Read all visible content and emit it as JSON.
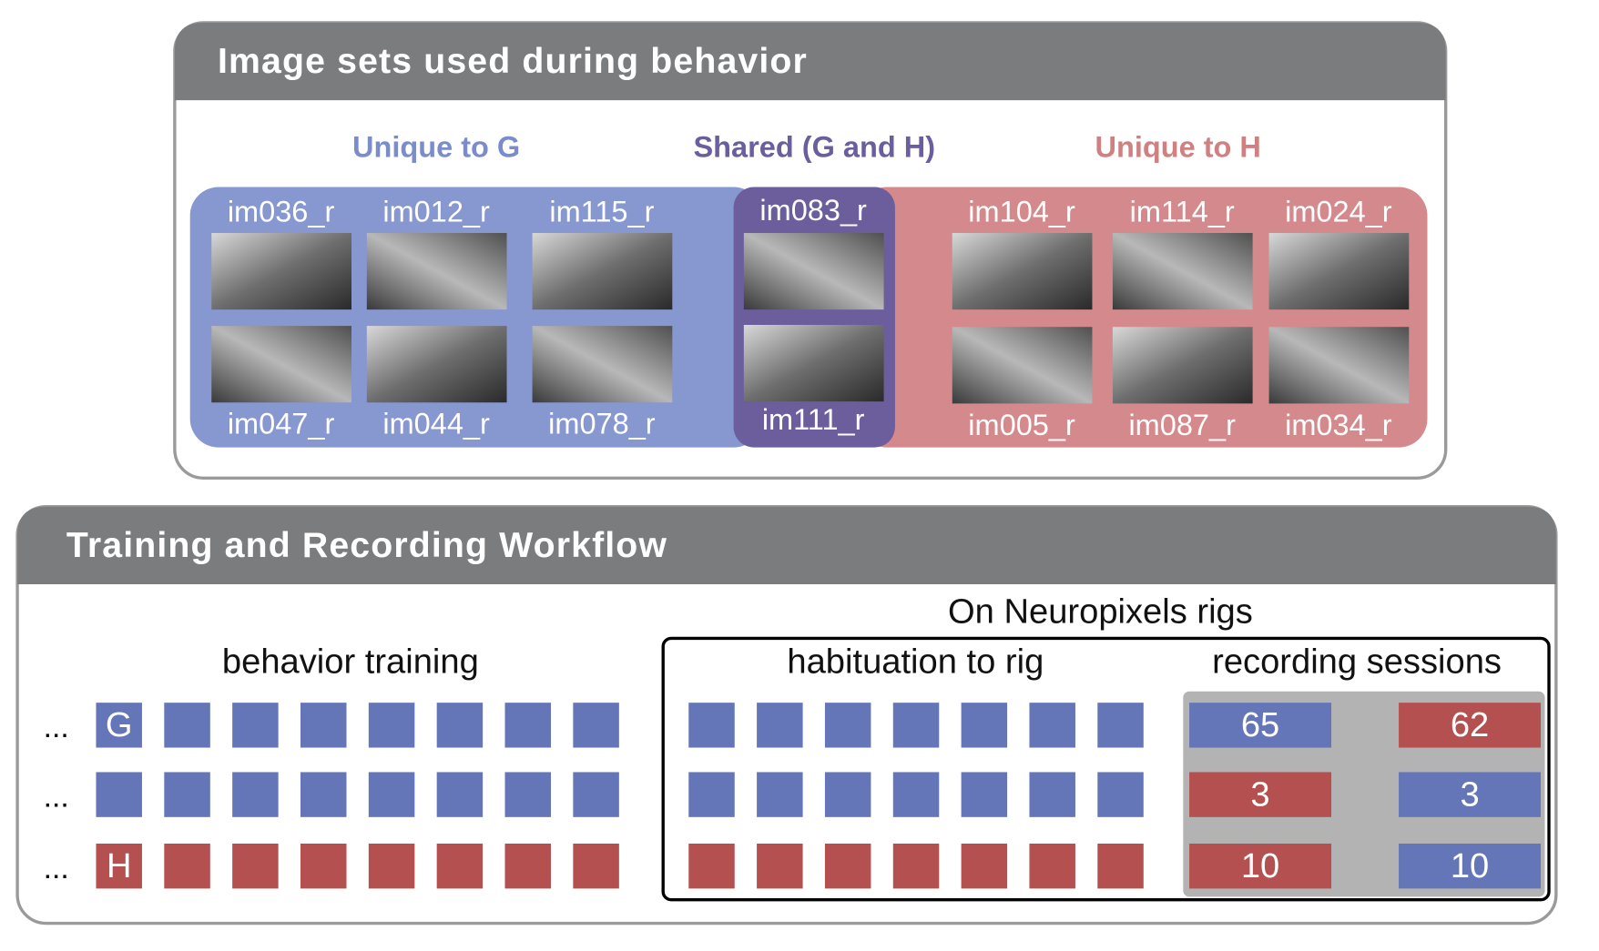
{
  "image_panel": {
    "title": "Image sets used during behavior",
    "groups": [
      {
        "label": "Unique to G",
        "images": [
          "im036_r",
          "im012_r",
          "im115_r",
          "im047_r",
          "im044_r",
          "im078_r"
        ]
      },
      {
        "label": "Shared (G and H)",
        "images": [
          "im083_r",
          "im111_r"
        ]
      },
      {
        "label": "Unique to H",
        "images": [
          "im104_r",
          "im114_r",
          "im024_r",
          "im005_r",
          "im087_r",
          "im034_r"
        ]
      }
    ]
  },
  "workflow": {
    "title": "Training and Recording Workflow",
    "rig_label": "On Neuropixels rigs",
    "sections": [
      "behavior training",
      "habituation to rig",
      "recording sessions"
    ],
    "rows": [
      {
        "prefix": "...",
        "label": "G",
        "recording": [
          "65",
          "62"
        ]
      },
      {
        "prefix": "...",
        "recording": [
          "3",
          "3"
        ]
      },
      {
        "prefix": "...",
        "label": "H",
        "recording": [
          "10",
          "10"
        ]
      }
    ]
  }
}
